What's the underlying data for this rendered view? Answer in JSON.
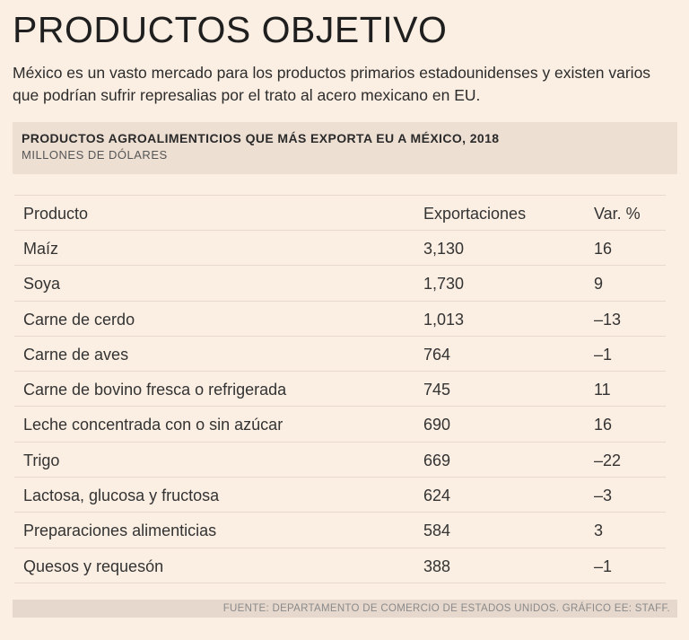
{
  "title": "PRODUCTOS OBJETIVO",
  "intro": "México es un vasto mercado para los productos primarios estadounidenses y existen varios que podrían sufrir represalias por el trato al acero mexicano en EU.",
  "source": "FUENTE: DEPARTAMENTO DE COMERCIO DE ESTADOS UNIDOS. GRÁFICO EE: STAFF.",
  "chart_data": {
    "type": "table",
    "title": "PRODUCTOS AGROALIMENTICIOS QUE MÁS EXPORTA EU A MÉXICO, 2018",
    "units": "MILLONES DE DÓLARES",
    "columns": [
      "Producto",
      "Exportaciones",
      "Var. %"
    ],
    "rows": [
      {
        "producto": "Maíz",
        "exportaciones": "3,130",
        "var": "16"
      },
      {
        "producto": "Soya",
        "exportaciones": "1,730",
        "var": "9"
      },
      {
        "producto": "Carne de cerdo",
        "exportaciones": "1,013",
        "var": "–13"
      },
      {
        "producto": "Carne de aves",
        "exportaciones": "764",
        "var": "–1"
      },
      {
        "producto": "Carne de bovino fresca o refrigerada",
        "exportaciones": "745",
        "var": "11"
      },
      {
        "producto": "Leche concentrada con o sin azúcar",
        "exportaciones": "690",
        "var": "16"
      },
      {
        "producto": "Trigo",
        "exportaciones": "669",
        "var": "–22"
      },
      {
        "producto": "Lactosa, glucosa y fructosa",
        "exportaciones": "624",
        "var": "–3"
      },
      {
        "producto": "Preparaciones alimenticias",
        "exportaciones": "584",
        "var": "3"
      },
      {
        "producto": "Quesos y requesón",
        "exportaciones": "388",
        "var": "–1"
      }
    ]
  }
}
